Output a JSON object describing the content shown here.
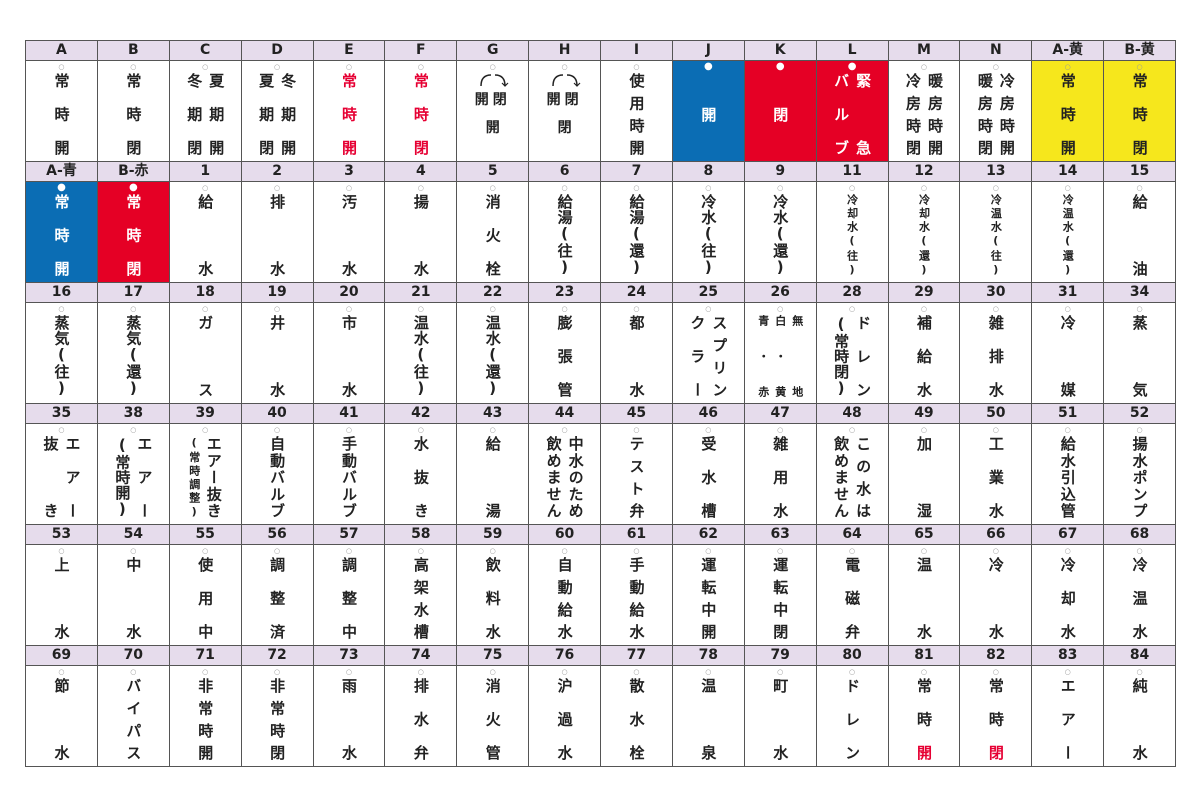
{
  "colors": {
    "header_bg": "#e6dcec",
    "blue": "#0b6db4",
    "red": "#e50025",
    "yellow": "#f6e71c",
    "red_text": "#e60033"
  },
  "rows": [
    [
      {
        "id": "A",
        "lines": [
          "常時開"
        ]
      },
      {
        "id": "B",
        "lines": [
          "常時閉"
        ]
      },
      {
        "id": "C",
        "lines": [
          "夏期開",
          "冬期閉"
        ]
      },
      {
        "id": "D",
        "lines": [
          "冬期開",
          "夏期閉"
        ]
      },
      {
        "id": "E",
        "lines": [
          "常時開"
        ],
        "style": "redtext"
      },
      {
        "id": "F",
        "lines": [
          "常時閉"
        ],
        "style": "redtext"
      },
      {
        "id": "G",
        "switch": [
          "開",
          "閉"
        ],
        "lines": [
          "開"
        ]
      },
      {
        "id": "H",
        "switch": [
          "開",
          "閉"
        ],
        "lines": [
          "閉"
        ]
      },
      {
        "id": "I",
        "lines": [
          "使用時開"
        ]
      },
      {
        "id": "J",
        "lines": [
          "開"
        ],
        "style": "blue"
      },
      {
        "id": "K",
        "lines": [
          "閉"
        ],
        "style": "red"
      },
      {
        "id": "L",
        "lines": [
          "緊急",
          "バルブ"
        ],
        "style": "red"
      },
      {
        "id": "M",
        "lines": [
          "暖房時開",
          "冷房時閉"
        ]
      },
      {
        "id": "N",
        "lines": [
          "冷房時開",
          "暖房時閉"
        ]
      },
      {
        "id": "A-黄",
        "lines": [
          "常時開"
        ],
        "style": "yellow"
      },
      {
        "id": "B-黄",
        "lines": [
          "常時閉"
        ],
        "style": "yellow"
      }
    ],
    [
      {
        "id": "A-青",
        "lines": [
          "常時開"
        ],
        "style": "blue"
      },
      {
        "id": "B-赤",
        "lines": [
          "常時閉"
        ],
        "style": "red"
      },
      {
        "id": "1",
        "lines": [
          "給水"
        ]
      },
      {
        "id": "2",
        "lines": [
          "排水"
        ]
      },
      {
        "id": "3",
        "lines": [
          "汚水"
        ]
      },
      {
        "id": "4",
        "lines": [
          "揚水"
        ]
      },
      {
        "id": "5",
        "lines": [
          "消火栓"
        ]
      },
      {
        "id": "6",
        "lines": [
          "給湯(往)"
        ]
      },
      {
        "id": "7",
        "lines": [
          "給湯(還)"
        ]
      },
      {
        "id": "8",
        "lines": [
          "冷水(往)"
        ]
      },
      {
        "id": "9",
        "lines": [
          "冷水(還)"
        ]
      },
      {
        "id": "11",
        "lines": [
          "冷却水(往)"
        ]
      },
      {
        "id": "12",
        "lines": [
          "冷却水(還)"
        ]
      },
      {
        "id": "13",
        "lines": [
          "冷温水(往)"
        ]
      },
      {
        "id": "14",
        "lines": [
          "冷温水(還)"
        ]
      },
      {
        "id": "15",
        "lines": [
          "給油"
        ]
      }
    ],
    [
      {
        "id": "16",
        "lines": [
          "蒸気(往)"
        ]
      },
      {
        "id": "17",
        "lines": [
          "蒸気(還)"
        ]
      },
      {
        "id": "18",
        "lines": [
          "ガス"
        ]
      },
      {
        "id": "19",
        "lines": [
          "井水"
        ]
      },
      {
        "id": "20",
        "lines": [
          "市水"
        ]
      },
      {
        "id": "21",
        "lines": [
          "温水(往)"
        ]
      },
      {
        "id": "22",
        "lines": [
          "温水(還)"
        ]
      },
      {
        "id": "23",
        "lines": [
          "膨張管"
        ]
      },
      {
        "id": "24",
        "lines": [
          "都水"
        ]
      },
      {
        "id": "25",
        "lines": [
          "スプリン",
          "クラー"
        ]
      },
      {
        "id": "26",
        "lines": [
          "無地",
          "白・黄",
          "青・赤"
        ]
      },
      {
        "id": "28",
        "lines": [
          "ドレン",
          "(常時閉)"
        ]
      },
      {
        "id": "29",
        "lines": [
          "補給水"
        ]
      },
      {
        "id": "30",
        "lines": [
          "雑排水"
        ]
      },
      {
        "id": "31",
        "lines": [
          "冷媒"
        ]
      },
      {
        "id": "34",
        "lines": [
          "蒸気"
        ]
      }
    ],
    [
      {
        "id": "35",
        "lines": [
          "エアー",
          "抜き"
        ]
      },
      {
        "id": "38",
        "lines": [
          "エアー",
          "(常時開)"
        ]
      },
      {
        "id": "39",
        "lines": [
          "エアー抜き",
          "(常時調整)"
        ]
      },
      {
        "id": "40",
        "lines": [
          "自動バルブ"
        ]
      },
      {
        "id": "41",
        "lines": [
          "手動バルブ"
        ]
      },
      {
        "id": "42",
        "lines": [
          "水抜き"
        ]
      },
      {
        "id": "43",
        "lines": [
          "給湯"
        ]
      },
      {
        "id": "44",
        "lines": [
          "中水のため",
          "飲めません"
        ]
      },
      {
        "id": "45",
        "lines": [
          "テスト弁"
        ]
      },
      {
        "id": "46",
        "lines": [
          "受水槽"
        ]
      },
      {
        "id": "47",
        "lines": [
          "雑用水"
        ]
      },
      {
        "id": "48",
        "lines": [
          "この水は",
          "飲めません"
        ]
      },
      {
        "id": "49",
        "lines": [
          "加湿"
        ]
      },
      {
        "id": "50",
        "lines": [
          "工業水"
        ]
      },
      {
        "id": "51",
        "lines": [
          "給水引込管"
        ]
      },
      {
        "id": "52",
        "lines": [
          "揚水ポンプ"
        ]
      }
    ],
    [
      {
        "id": "53",
        "lines": [
          "上水"
        ]
      },
      {
        "id": "54",
        "lines": [
          "中水"
        ]
      },
      {
        "id": "55",
        "lines": [
          "使用中"
        ]
      },
      {
        "id": "56",
        "lines": [
          "調整済"
        ]
      },
      {
        "id": "57",
        "lines": [
          "調整中"
        ]
      },
      {
        "id": "58",
        "lines": [
          "高架水槽"
        ]
      },
      {
        "id": "59",
        "lines": [
          "飲料水"
        ]
      },
      {
        "id": "60",
        "lines": [
          "自動給水"
        ]
      },
      {
        "id": "61",
        "lines": [
          "手動給水"
        ]
      },
      {
        "id": "62",
        "lines": [
          "運転中開"
        ]
      },
      {
        "id": "63",
        "lines": [
          "運転中閉"
        ]
      },
      {
        "id": "64",
        "lines": [
          "電磁弁"
        ]
      },
      {
        "id": "65",
        "lines": [
          "温水"
        ]
      },
      {
        "id": "66",
        "lines": [
          "冷水"
        ]
      },
      {
        "id": "67",
        "lines": [
          "冷却水"
        ]
      },
      {
        "id": "68",
        "lines": [
          "冷温水"
        ]
      }
    ],
    [
      {
        "id": "69",
        "lines": [
          "節水"
        ]
      },
      {
        "id": "70",
        "lines": [
          "バイパス"
        ]
      },
      {
        "id": "71",
        "lines": [
          "非常時開"
        ]
      },
      {
        "id": "72",
        "lines": [
          "非常時閉"
        ]
      },
      {
        "id": "73",
        "lines": [
          "雨水"
        ]
      },
      {
        "id": "74",
        "lines": [
          "排水弁"
        ]
      },
      {
        "id": "75",
        "lines": [
          "消火管"
        ]
      },
      {
        "id": "76",
        "lines": [
          "沪過水"
        ]
      },
      {
        "id": "77",
        "lines": [
          "散水栓"
        ]
      },
      {
        "id": "78",
        "lines": [
          "温泉"
        ]
      },
      {
        "id": "79",
        "lines": [
          "町水"
        ]
      },
      {
        "id": "80",
        "lines": [
          "ドレン"
        ]
      },
      {
        "id": "81",
        "lines": [
          "常時"
        ],
        "accent": "開"
      },
      {
        "id": "82",
        "lines": [
          "常時"
        ],
        "accent": "閉"
      },
      {
        "id": "83",
        "lines": [
          "エアー"
        ]
      },
      {
        "id": "84",
        "lines": [
          "純水"
        ]
      }
    ]
  ]
}
